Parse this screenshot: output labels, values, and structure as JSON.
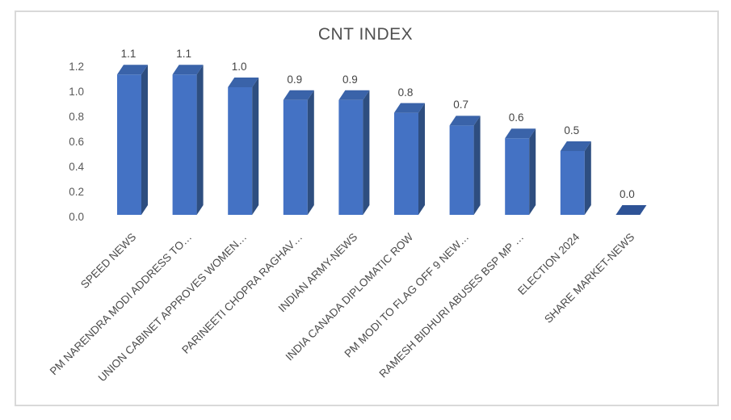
{
  "chart_data": {
    "type": "bar",
    "style": "3d-clustered-column",
    "title": "CNT INDEX",
    "categories": [
      "SPEED NEWS",
      "PM NARENDRA MODI ADDRESS TO…",
      "UNION CABINET APPROVES WOMEN…",
      "PARINEETI CHOPRA RAGHAV…",
      "INDIAN ARMY-NEWS",
      "INDIA CANADA DIPLOMATIC ROW",
      "PM MODI TO FLAG OFF 9 NEW…",
      "RAMESH BIDHURI ABUSES BSP MP …",
      "ELECTION 2024",
      "SHARE MARKET-NEWS"
    ],
    "values": [
      1.1,
      1.1,
      1.0,
      0.9,
      0.9,
      0.8,
      0.7,
      0.6,
      0.5,
      0.0
    ],
    "value_labels": [
      "1.1",
      "1.1",
      "1.0",
      "0.9",
      "0.9",
      "0.8",
      "0.7",
      "0.6",
      "0.5",
      "0.0"
    ],
    "yticks": [
      "0.0",
      "0.2",
      "0.4",
      "0.6",
      "0.8",
      "1.0",
      "1.2"
    ],
    "ylim": [
      0,
      1.2
    ],
    "xlabel": "",
    "ylabel": "",
    "grid": false,
    "legend": "none",
    "colors": {
      "bar_front": "#4472C4",
      "bar_top": "#3A63A9",
      "bar_side": "#2E4E80",
      "zero_bar": "#2E5396",
      "title": "#505050",
      "value_label": "#444444",
      "axis_label": "#595959",
      "category_label": "#4a4a4a",
      "frame_border": "#d9d9d9",
      "background": "#ffffff"
    }
  }
}
